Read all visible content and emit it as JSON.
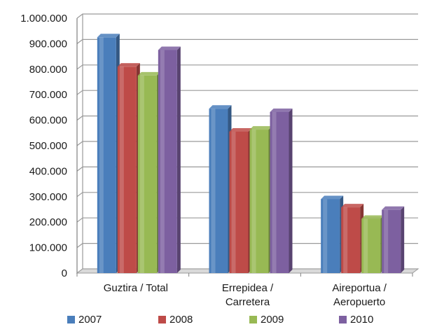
{
  "chart_data": {
    "type": "bar",
    "categories": [
      "Guztira / Total",
      "Errepidea / Carretera",
      "Aireportua / Aeropuerto"
    ],
    "category_lines": [
      [
        "Guztira / Total"
      ],
      [
        "Errepidea /",
        "Carretera"
      ],
      [
        "Aireportua /",
        "Aeropuerto"
      ]
    ],
    "series": [
      {
        "name": "2007",
        "color": "#4a7ebb",
        "values": [
          925000,
          645000,
          290000
        ]
      },
      {
        "name": "2008",
        "color": "#be4b48",
        "values": [
          810000,
          555000,
          258000
        ]
      },
      {
        "name": "2009",
        "color": "#98b954",
        "values": [
          775000,
          563000,
          213000
        ]
      },
      {
        "name": "2010",
        "color": "#7d60a0",
        "values": [
          875000,
          632000,
          248000
        ]
      }
    ],
    "y_ticks": [
      "0",
      "100.000",
      "200.000",
      "300.000",
      "400.000",
      "500.000",
      "600.000",
      "700.000",
      "800.000",
      "900.000",
      "1.000.000"
    ],
    "ylim": [
      0,
      1000000
    ],
    "grid": true,
    "legend_position": "bottom",
    "title": "",
    "xlabel": "",
    "ylabel": ""
  }
}
